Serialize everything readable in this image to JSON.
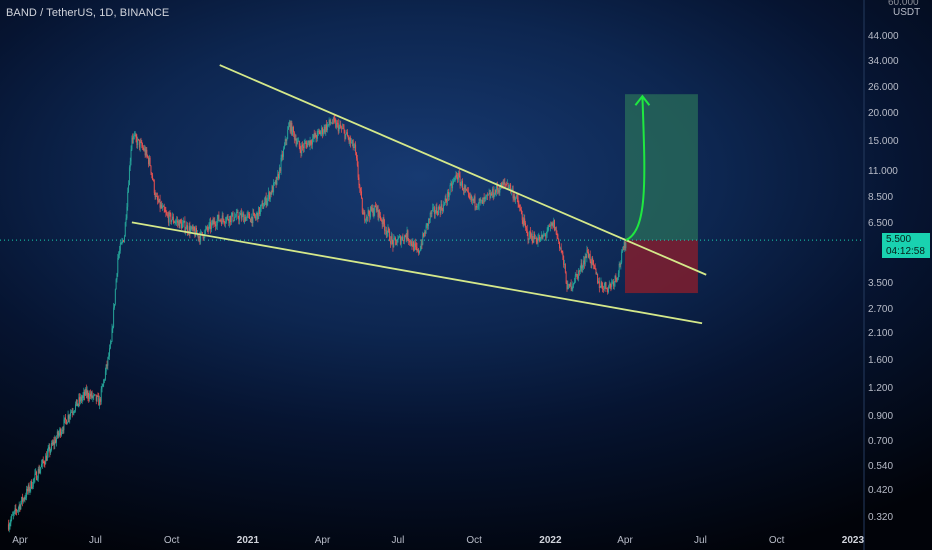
{
  "header": {
    "title": "BAND / TetherUS, 1D, BINANCE"
  },
  "axis": {
    "unit": "USDT",
    "top_clipped": "60.000",
    "y_ticks": [
      "44.000",
      "34.000",
      "26.000",
      "20.000",
      "15.000",
      "11.000",
      "8.500",
      "6.500",
      "3.500",
      "2.700",
      "2.100",
      "1.600",
      "1.200",
      "0.900",
      "0.700",
      "0.540",
      "0.420",
      "0.320"
    ],
    "x_ticks": [
      {
        "label": "Apr",
        "bold": false
      },
      {
        "label": "Jul",
        "bold": false
      },
      {
        "label": "Oct",
        "bold": false
      },
      {
        "label": "2021",
        "bold": true
      },
      {
        "label": "Apr",
        "bold": false
      },
      {
        "label": "Jul",
        "bold": false
      },
      {
        "label": "Oct",
        "bold": false
      },
      {
        "label": "2022",
        "bold": true
      },
      {
        "label": "Apr",
        "bold": false
      },
      {
        "label": "Jul",
        "bold": false
      },
      {
        "label": "Oct",
        "bold": false
      },
      {
        "label": "2023",
        "bold": true
      }
    ]
  },
  "price_tag": {
    "price": "5.500",
    "countdown": "04:12:58",
    "color": "#19d2b0"
  },
  "colors": {
    "up": "#26a69a",
    "down": "#ef5350",
    "trendline": "#d4e88a",
    "target_arrow": "#1fe840",
    "target_zone": "#2e7d5b",
    "stop_zone": "#8b1d2c"
  },
  "chart_data": {
    "type": "candlestick",
    "title": "BAND / TetherUS, 1D, BINANCE",
    "y_scale": "log",
    "unit": "USDT",
    "timeframe": "1D",
    "exchange": "BINANCE",
    "x_range": [
      "2020-03-18",
      "2023-01-08"
    ],
    "y_range": [
      0.29,
      60
    ],
    "current_price": 5.5,
    "price_path": [
      [
        "2020-03-18",
        0.3
      ],
      [
        "2020-04-10",
        0.42
      ],
      [
        "2020-05-05",
        0.62
      ],
      [
        "2020-06-01",
        0.95
      ],
      [
        "2020-06-20",
        1.15
      ],
      [
        "2020-07-06",
        1.05
      ],
      [
        "2020-07-20",
        1.9
      ],
      [
        "2020-07-28",
        4.6
      ],
      [
        "2020-08-05",
        5.8
      ],
      [
        "2020-08-14",
        16.0
      ],
      [
        "2020-08-28",
        14.0
      ],
      [
        "2020-09-05",
        12.0
      ],
      [
        "2020-09-12",
        8.4
      ],
      [
        "2020-09-25",
        7.0
      ],
      [
        "2020-10-15",
        6.4
      ],
      [
        "2020-11-05",
        5.7
      ],
      [
        "2020-11-25",
        6.8
      ],
      [
        "2020-12-20",
        7.0
      ],
      [
        "2021-01-10",
        6.9
      ],
      [
        "2021-02-05",
        10.0
      ],
      [
        "2021-02-20",
        18.0
      ],
      [
        "2021-03-05",
        14.0
      ],
      [
        "2021-03-25",
        16.0
      ],
      [
        "2021-04-12",
        18.5
      ],
      [
        "2021-04-25",
        17.0
      ],
      [
        "2021-05-10",
        14.0
      ],
      [
        "2021-05-20",
        7.0
      ],
      [
        "2021-06-05",
        7.6
      ],
      [
        "2021-06-25",
        5.3
      ],
      [
        "2021-07-12",
        5.8
      ],
      [
        "2021-07-25",
        4.8
      ],
      [
        "2021-08-10",
        7.2
      ],
      [
        "2021-08-25",
        7.8
      ],
      [
        "2021-09-10",
        10.8
      ],
      [
        "2021-09-25",
        8.3
      ],
      [
        "2021-10-10",
        8.0
      ],
      [
        "2021-10-28",
        9.2
      ],
      [
        "2021-11-10",
        9.9
      ],
      [
        "2021-11-22",
        8.2
      ],
      [
        "2021-12-04",
        5.8
      ],
      [
        "2021-12-20",
        5.5
      ],
      [
        "2022-01-05",
        6.5
      ],
      [
        "2022-01-15",
        4.8
      ],
      [
        "2022-01-22",
        3.3
      ],
      [
        "2022-02-05",
        4.0
      ],
      [
        "2022-02-15",
        4.9
      ],
      [
        "2022-03-01",
        3.5
      ],
      [
        "2022-03-12",
        3.4
      ],
      [
        "2022-03-22",
        3.8
      ],
      [
        "2022-04-02",
        5.5
      ]
    ],
    "drawings": [
      {
        "type": "trendline",
        "name": "upper",
        "from": [
          "2020-11-28",
          33.0
        ],
        "to": [
          "2022-07-08",
          3.86
        ]
      },
      {
        "type": "trendline",
        "name": "lower",
        "from": [
          "2020-08-14",
          6.6
        ],
        "to": [
          "2022-07-03",
          2.35
        ]
      },
      {
        "type": "long_position",
        "entry": 5.5,
        "target": 24.5,
        "stop": 3.2,
        "from": "2022-04-01",
        "to": "2022-06-28"
      },
      {
        "type": "arrow",
        "from": [
          "2022-04-02",
          5.5
        ],
        "to": [
          "2022-04-22",
          24.0
        ]
      }
    ]
  }
}
